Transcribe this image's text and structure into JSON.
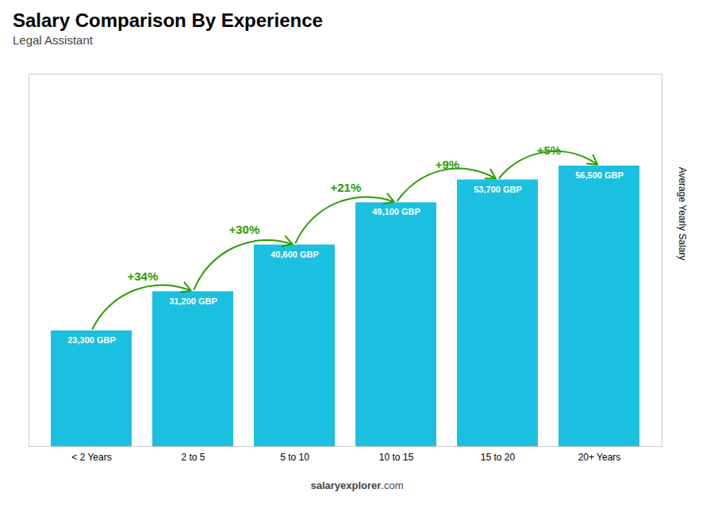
{
  "chart_data": {
    "type": "bar",
    "title": "Salary Comparison By Experience",
    "subtitle": "Legal Assistant",
    "ylabel": "Average Yearly Salary",
    "categories": [
      "< 2 Years",
      "2 to 5",
      "5 to 10",
      "10 to 15",
      "15 to 20",
      "20+ Years"
    ],
    "values": [
      23300,
      31200,
      40600,
      49100,
      53700,
      56500
    ],
    "value_labels": [
      "23,300 GBP",
      "31,200 GBP",
      "40,600 GBP",
      "49,100 GBP",
      "53,700 GBP",
      "56,500 GBP"
    ],
    "data_labels": true,
    "annotations": [
      "+34%",
      "+30%",
      "+21%",
      "+9%",
      "+5%"
    ],
    "footer": [
      "salary",
      "explorer",
      ".com"
    ],
    "color": "#1bbfdf",
    "ylim": [
      0,
      75000
    ],
    "tick_labels": "x"
  }
}
